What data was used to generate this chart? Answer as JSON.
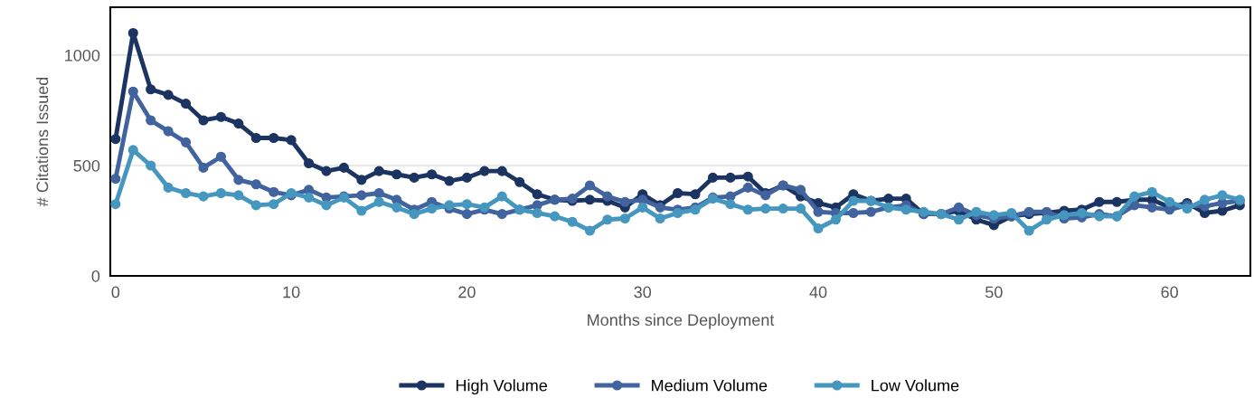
{
  "chart_data": {
    "type": "line",
    "xlabel": "Months since Deployment",
    "ylabel": "# Citations Issued",
    "x": [
      0,
      1,
      2,
      3,
      4,
      5,
      6,
      7,
      8,
      9,
      10,
      11,
      12,
      13,
      14,
      15,
      16,
      17,
      18,
      19,
      20,
      21,
      22,
      23,
      24,
      25,
      26,
      27,
      28,
      29,
      30,
      31,
      32,
      33,
      34,
      35,
      36,
      37,
      38,
      39,
      40,
      41,
      42,
      43,
      44,
      45,
      46,
      47,
      48,
      49,
      50,
      51,
      52,
      53,
      54,
      55,
      56,
      57,
      58,
      59,
      60,
      61,
      62,
      63,
      64
    ],
    "xlim": [
      -0.3,
      64.6
    ],
    "xticks": [
      0,
      10,
      20,
      30,
      40,
      50,
      60
    ],
    "ylim": [
      0,
      1217
    ],
    "yticks": [
      0,
      500,
      1000
    ],
    "grid": "y",
    "legend": "bottom",
    "marker": "circle",
    "line_style": "solid",
    "series": [
      {
        "name": "High Volume",
        "color": "#1b3461",
        "values": [
          620,
          1100,
          845,
          820,
          780,
          705,
          720,
          690,
          625,
          625,
          615,
          510,
          475,
          490,
          435,
          475,
          460,
          445,
          460,
          430,
          445,
          475,
          475,
          425,
          370,
          345,
          340,
          345,
          340,
          310,
          370,
          320,
          375,
          370,
          445,
          445,
          450,
          375,
          410,
          360,
          330,
          310,
          370,
          340,
          350,
          350,
          280,
          280,
          295,
          255,
          230,
          270,
          280,
          285,
          295,
          300,
          335,
          335,
          345,
          345,
          310,
          330,
          285,
          295,
          320
        ]
      },
      {
        "name": "Medium Volume",
        "color": "#41649f",
        "values": [
          440,
          835,
          705,
          655,
          605,
          490,
          540,
          435,
          415,
          380,
          365,
          390,
          355,
          360,
          365,
          375,
          345,
          300,
          335,
          305,
          280,
          300,
          280,
          300,
          320,
          345,
          350,
          410,
          360,
          335,
          345,
          310,
          300,
          310,
          355,
          360,
          400,
          365,
          410,
          390,
          290,
          285,
          285,
          290,
          310,
          320,
          280,
          280,
          310,
          275,
          260,
          270,
          290,
          290,
          260,
          265,
          280,
          270,
          320,
          310,
          300,
          320,
          315,
          330,
          340
        ]
      },
      {
        "name": "Low Volume",
        "color": "#4597bf",
        "values": [
          325,
          570,
          500,
          400,
          375,
          360,
          375,
          365,
          320,
          325,
          375,
          355,
          320,
          355,
          295,
          335,
          310,
          280,
          305,
          320,
          325,
          310,
          360,
          300,
          285,
          270,
          245,
          205,
          255,
          260,
          310,
          260,
          285,
          300,
          350,
          325,
          300,
          305,
          305,
          305,
          215,
          255,
          340,
          340,
          310,
          300,
          290,
          280,
          255,
          290,
          275,
          285,
          205,
          255,
          275,
          285,
          270,
          270,
          360,
          380,
          335,
          305,
          345,
          365,
          345
        ]
      }
    ]
  }
}
